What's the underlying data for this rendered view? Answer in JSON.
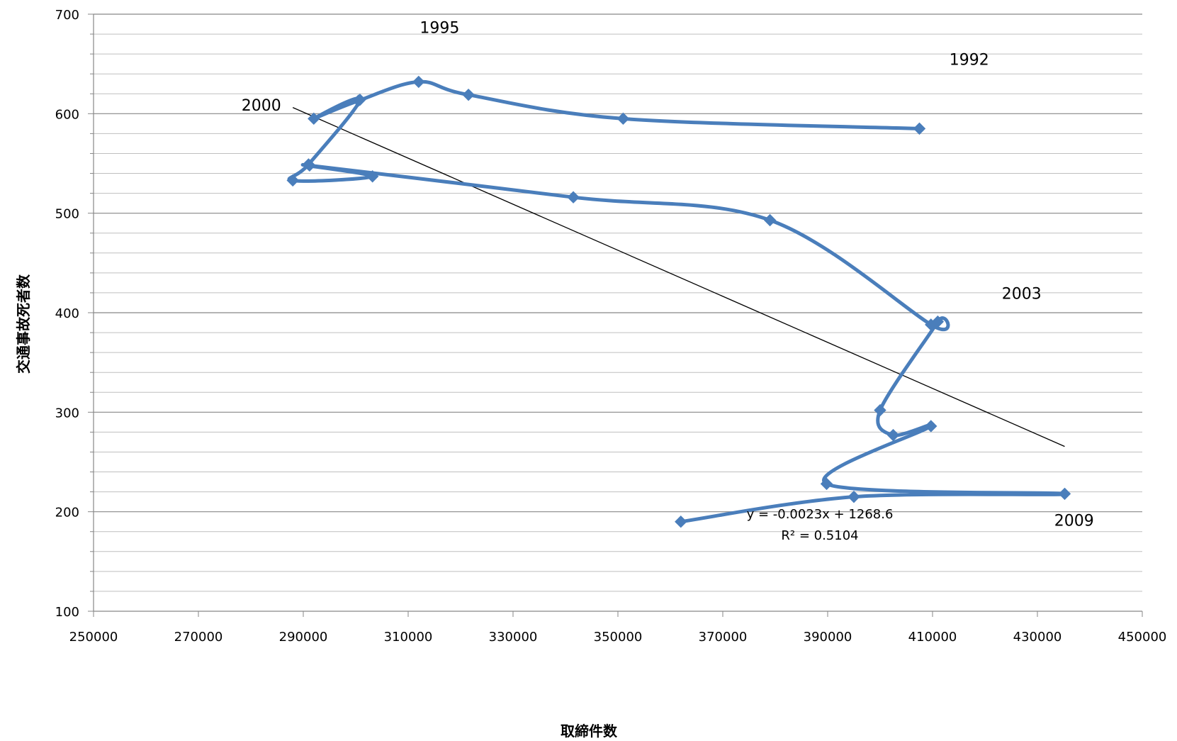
{
  "chart_data": {
    "type": "scatter",
    "xlabel": "取締件数",
    "ylabel": "交通事故死者数",
    "xlim": [
      250000,
      450000
    ],
    "ylim": [
      100,
      700
    ],
    "x_ticks": [
      250000,
      270000,
      290000,
      310000,
      330000,
      350000,
      370000,
      390000,
      410000,
      430000,
      450000
    ],
    "y_ticks": [
      100,
      200,
      300,
      400,
      500,
      600,
      700
    ],
    "grid": "horizontal",
    "series": [
      {
        "color": "#4a7ebb",
        "connected": "smooth",
        "marker": "diamond",
        "points": [
          [
            407500,
            585
          ],
          [
            351000,
            595
          ],
          [
            321500,
            619
          ],
          [
            312000,
            632
          ],
          [
            300500,
            613
          ],
          [
            292000,
            595
          ],
          [
            300800,
            614
          ],
          [
            291000,
            549
          ],
          [
            288000,
            533
          ],
          [
            303200,
            537
          ],
          [
            291200,
            548
          ],
          [
            341500,
            516
          ],
          [
            379000,
            493
          ],
          [
            409700,
            388
          ],
          [
            411000,
            391
          ],
          [
            400000,
            302
          ],
          [
            402500,
            277
          ],
          [
            409700,
            286
          ],
          [
            389800,
            228
          ],
          [
            435200,
            218
          ],
          [
            395000,
            215
          ],
          [
            362000,
            190
          ]
        ]
      }
    ],
    "trendline": {
      "type": "linear",
      "x": [
        288000,
        435200
      ],
      "y": [
        606.2,
        265.6
      ],
      "color": "#000000",
      "equation": "y = -0.0023x + 1268.6",
      "r2": "R² = 0.5104"
    },
    "annotations": [
      {
        "text": "1995",
        "x": 316000,
        "y": 681
      },
      {
        "text": "1992",
        "x": 417000,
        "y": 649
      },
      {
        "text": "2000",
        "x": 282000,
        "y": 603
      },
      {
        "text": "2003",
        "x": 427000,
        "y": 414
      },
      {
        "text": "2009",
        "x": 437000,
        "y": 186
      }
    ]
  }
}
